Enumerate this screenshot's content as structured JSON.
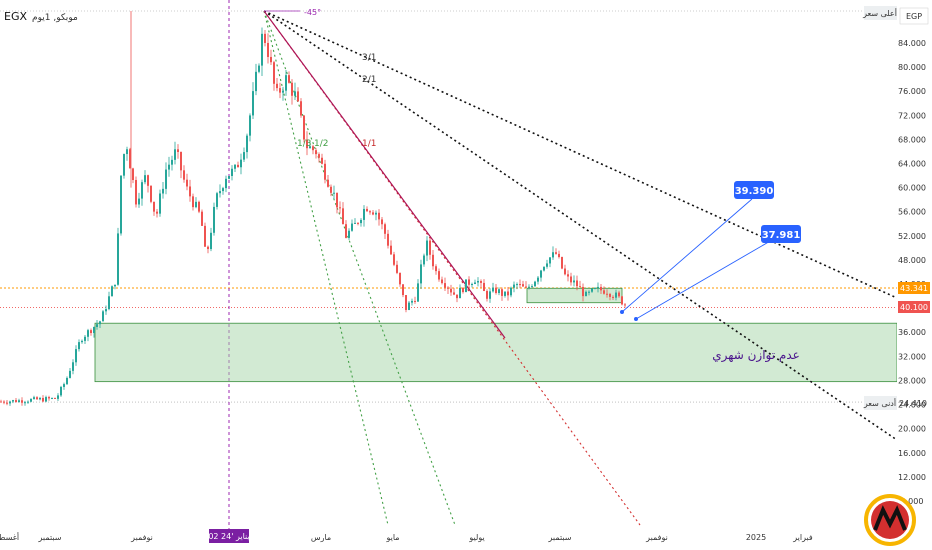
{
  "header": {
    "symbol": "EGX",
    "subtitle": "موبكو, 1يوم"
  },
  "currency": "EGP",
  "price_axis": {
    "ticks": [
      "84.000",
      "80.000",
      "76.000",
      "72.000",
      "68.000",
      "64.000",
      "60.000",
      "56.000",
      "52.000",
      "48.000",
      "44.000",
      "40.000",
      "36.000",
      "32.000",
      "28.000",
      "24.000",
      "20.000",
      "16.000",
      "12.000",
      "8.000"
    ],
    "high_label": "أعلى سعر",
    "low_label": "أدنى سعر",
    "low_value": "24.410",
    "level_orange": "43.341",
    "level_red": "40.100"
  },
  "time_axis": {
    "labels": [
      "أغسطس",
      "سبتمبر",
      "نوفمبر",
      "مارس",
      "مايو",
      "يوليو",
      "سبتمبر",
      "نوفمبر",
      "2025",
      "فبراير"
    ],
    "highlight": "02 24' يناير"
  },
  "annotations": {
    "angle": "-45°",
    "fan_3_1": "3/1",
    "fan_2_1": "2/1",
    "fan_1_1": "1/1",
    "fan_1_2": "1/2",
    "fan_1_3": "1/3",
    "zone_label": "عدم توازن  شهري",
    "target_1": "39.390",
    "target_2": "37.981"
  },
  "colors": {
    "bull": "#26a69a",
    "bear": "#ef5350",
    "zone": "#a5d6a7",
    "zone_border": "#388e3c",
    "target_box": "#2962ff",
    "orange": "#ff9800",
    "purple": "#9c27b0",
    "fan_black": "#111111",
    "fan_green": "#43a047",
    "fan_red": "#d32f2f"
  },
  "chart_data": {
    "type": "candlestick",
    "y_unit": "EGP",
    "y_ticks": [
      84,
      80,
      76,
      72,
      68,
      64,
      60,
      56,
      52,
      48,
      44,
      40,
      36,
      32,
      28,
      24,
      20,
      16,
      12,
      8
    ],
    "ylim": [
      6.5,
      88.5
    ],
    "grid": false,
    "close_path": [
      [
        0,
        24.5
      ],
      [
        55,
        25
      ],
      [
        65,
        28
      ],
      [
        80,
        35
      ],
      [
        100,
        38
      ],
      [
        115,
        45
      ],
      [
        120,
        62
      ],
      [
        125,
        68
      ],
      [
        135,
        58
      ],
      [
        145,
        62
      ],
      [
        155,
        55
      ],
      [
        165,
        63
      ],
      [
        175,
        66
      ],
      [
        185,
        60
      ],
      [
        200,
        55
      ],
      [
        205,
        48
      ],
      [
        215,
        58
      ],
      [
        225,
        62
      ],
      [
        235,
        63
      ],
      [
        245,
        68
      ],
      [
        255,
        78
      ],
      [
        262,
        86
      ],
      [
        268,
        82
      ],
      [
        275,
        75
      ],
      [
        285,
        78
      ],
      [
        295,
        75
      ],
      [
        305,
        67
      ],
      [
        315,
        66
      ],
      [
        325,
        62
      ],
      [
        335,
        58
      ],
      [
        345,
        52
      ],
      [
        355,
        54
      ],
      [
        365,
        57
      ],
      [
        375,
        56
      ],
      [
        385,
        52
      ],
      [
        395,
        46
      ],
      [
        405,
        40
      ],
      [
        415,
        42
      ],
      [
        425,
        51
      ],
      [
        435,
        46
      ],
      [
        445,
        44
      ],
      [
        455,
        42
      ],
      [
        465,
        44
      ],
      [
        475,
        45
      ],
      [
        485,
        42
      ],
      [
        495,
        43
      ],
      [
        505,
        42
      ],
      [
        515,
        44
      ],
      [
        525,
        43
      ],
      [
        535,
        45
      ],
      [
        545,
        48
      ],
      [
        555,
        49
      ],
      [
        565,
        45
      ],
      [
        575,
        44
      ],
      [
        585,
        42
      ],
      [
        595,
        43
      ],
      [
        605,
        43
      ],
      [
        615,
        42
      ],
      [
        625,
        40.6
      ]
    ],
    "levels": {
      "resistance": 43.341,
      "support": 40.1,
      "low": 24.41
    },
    "zone": {
      "top": 37.5,
      "bottom": 27.8
    },
    "targets": [
      39.39,
      37.981
    ]
  }
}
